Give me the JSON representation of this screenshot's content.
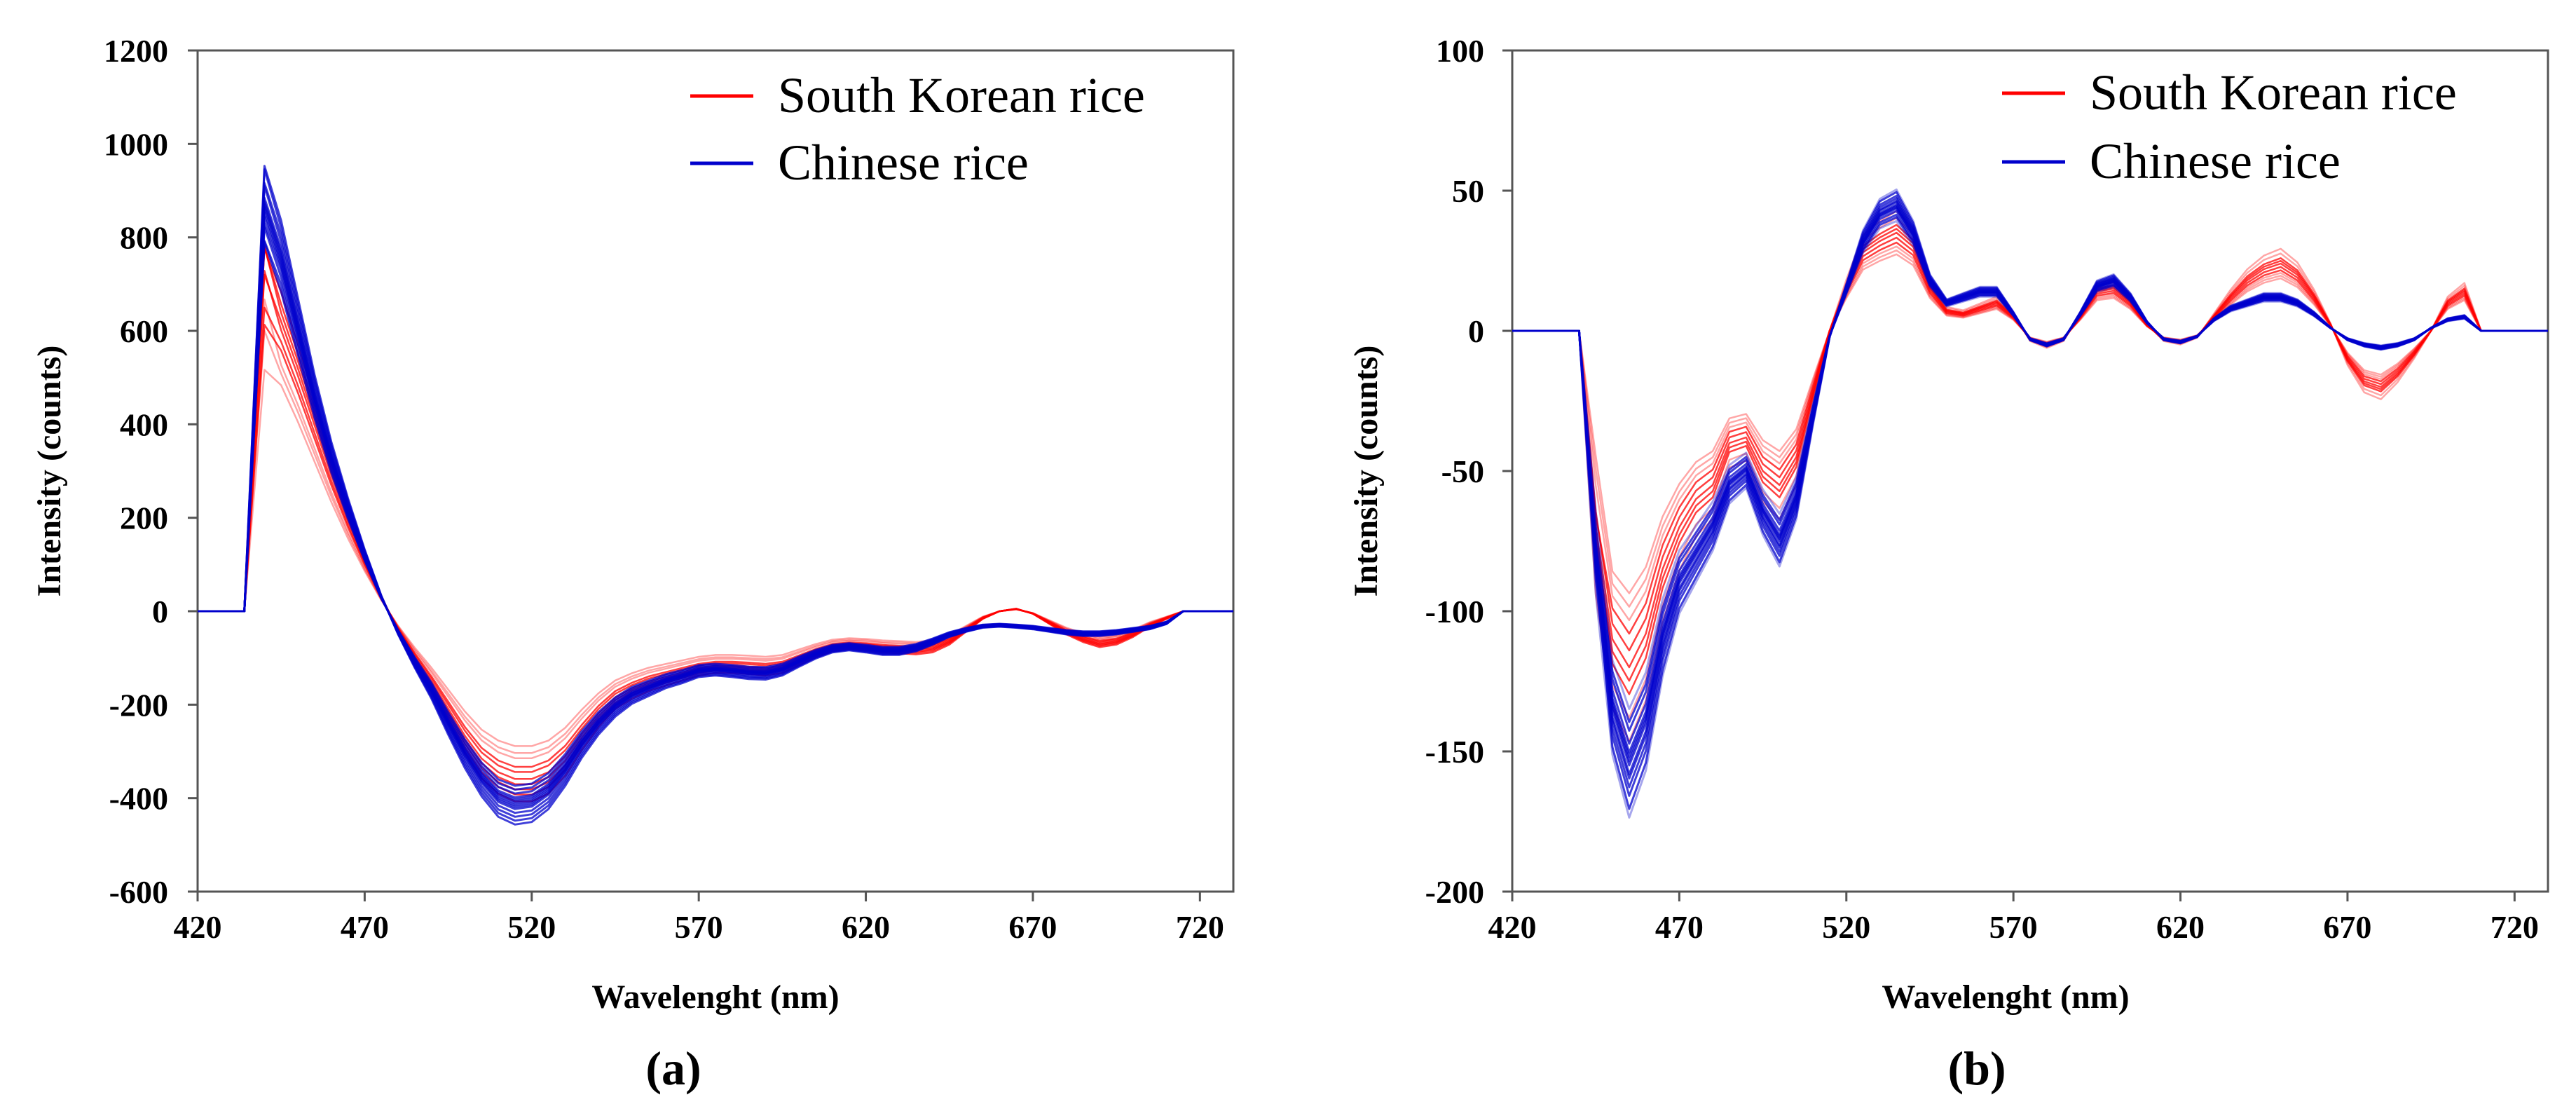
{
  "chart_data": [
    {
      "panel": "(a)",
      "type": "line",
      "title": "",
      "xlabel": "Wavelenght (nm)",
      "ylabel": "Intensity (counts)",
      "xlim": [
        420,
        730
      ],
      "ylim": [
        -600,
        1200
      ],
      "xticks": [
        420,
        470,
        520,
        570,
        620,
        670,
        720
      ],
      "yticks": [
        -600,
        -400,
        -200,
        0,
        200,
        400,
        600,
        800,
        1000,
        1200
      ],
      "grid": false,
      "legend": {
        "placement": "top-right",
        "entries": [
          {
            "label": "South Korean rice",
            "color": "#ff0000"
          },
          {
            "label": "Chinese rice",
            "color": "#0000cc"
          }
        ]
      },
      "x": [
        420,
        434,
        440,
        445,
        450,
        455,
        460,
        465,
        470,
        475,
        480,
        485,
        490,
        495,
        500,
        505,
        510,
        515,
        520,
        525,
        530,
        535,
        540,
        545,
        550,
        555,
        560,
        565,
        570,
        575,
        580,
        585,
        590,
        595,
        600,
        605,
        610,
        615,
        620,
        625,
        630,
        635,
        640,
        645,
        650,
        655,
        660,
        665,
        670,
        675,
        680,
        685,
        690,
        695,
        700,
        705,
        710,
        715,
        730
      ],
      "series": [
        {
          "name": "South Korean rice",
          "color": "#ff0000",
          "mean": [
            0,
            0,
            720,
            620,
            520,
            410,
            300,
            200,
            110,
            30,
            -40,
            -100,
            -155,
            -215,
            -275,
            -325,
            -355,
            -370,
            -370,
            -355,
            -320,
            -270,
            -225,
            -190,
            -170,
            -155,
            -145,
            -135,
            -125,
            -120,
            -120,
            -122,
            -125,
            -120,
            -105,
            -90,
            -78,
            -74,
            -76,
            -80,
            -82,
            -84,
            -80,
            -65,
            -40,
            -15,
            0,
            5,
            -5,
            -25,
            -45,
            -60,
            -70,
            -65,
            -50,
            -30,
            -15,
            0,
            0
          ],
          "curves": [
            {
              "scale": 1.0,
              "ridge": 0
            },
            {
              "scale": 0.93,
              "ridge": -20
            },
            {
              "scale": 1.06,
              "ridge": 15
            },
            {
              "scale": 0.85,
              "ridge": 55
            },
            {
              "scale": 0.78,
              "ridge": -45
            },
            {
              "scale": 1.1,
              "ridge": -15
            },
            {
              "scale": 0.97,
              "ridge": 30
            },
            {
              "scale": 0.9,
              "ridge": -35
            },
            {
              "scale": 1.03,
              "ridge": 40
            },
            {
              "scale": 0.82,
              "ridge": 10
            }
          ]
        },
        {
          "name": "Chinese rice",
          "color": "#0000cc",
          "mean": [
            0,
            0,
            870,
            760,
            610,
            460,
            330,
            220,
            120,
            30,
            -45,
            -110,
            -170,
            -240,
            -305,
            -360,
            -400,
            -415,
            -410,
            -385,
            -340,
            -285,
            -240,
            -205,
            -180,
            -165,
            -150,
            -140,
            -128,
            -125,
            -128,
            -132,
            -133,
            -125,
            -108,
            -92,
            -80,
            -76,
            -80,
            -85,
            -85,
            -78,
            -65,
            -50,
            -40,
            -32,
            -30,
            -32,
            -35,
            -40,
            -45,
            -48,
            -48,
            -45,
            -40,
            -35,
            -25,
            0,
            0
          ],
          "curves": [
            {
              "scale": 1.0,
              "ridge": 0
            },
            {
              "scale": 0.96,
              "ridge": -5
            },
            {
              "scale": 1.04,
              "ridge": 5
            },
            {
              "scale": 0.92,
              "ridge": -8
            },
            {
              "scale": 1.08,
              "ridge": 6
            },
            {
              "scale": 0.99,
              "ridge": 3
            },
            {
              "scale": 1.02,
              "ridge": -3
            },
            {
              "scale": 0.94,
              "ridge": 4
            },
            {
              "scale": 1.06,
              "ridge": -6
            },
            {
              "scale": 0.98,
              "ridge": 2
            },
            {
              "scale": 1.01,
              "ridge": -2
            },
            {
              "scale": 0.9,
              "ridge": 7
            },
            {
              "scale": 1.1,
              "ridge": -4
            },
            {
              "scale": 0.97,
              "ridge": 1
            }
          ]
        }
      ]
    },
    {
      "panel": "(b)",
      "type": "line",
      "title": "",
      "xlabel": "Wavelenght (nm)",
      "ylabel": "Intensity (counts)",
      "xlim": [
        420,
        730
      ],
      "ylim": [
        -200,
        100
      ],
      "xticks": [
        420,
        470,
        520,
        570,
        620,
        670,
        720
      ],
      "yticks": [
        -200,
        -150,
        -100,
        -50,
        0,
        50,
        100
      ],
      "grid": false,
      "legend": {
        "placement": "top-right",
        "entries": [
          {
            "label": "South Korean rice",
            "color": "#ff0000"
          },
          {
            "label": "Chinese rice",
            "color": "#0000cc"
          }
        ]
      },
      "x": [
        420,
        440,
        445,
        450,
        455,
        460,
        465,
        470,
        475,
        480,
        485,
        490,
        495,
        500,
        505,
        510,
        515,
        520,
        525,
        530,
        535,
        540,
        545,
        550,
        555,
        560,
        565,
        570,
        575,
        580,
        585,
        590,
        595,
        600,
        605,
        610,
        615,
        620,
        625,
        630,
        635,
        640,
        645,
        650,
        655,
        660,
        665,
        670,
        675,
        680,
        685,
        690,
        695,
        700,
        705,
        710,
        730
      ],
      "series": [
        {
          "name": "South Korean rice",
          "color": "#ff0000",
          "mean": [
            0,
            0,
            -70,
            -110,
            -120,
            -108,
            -85,
            -70,
            -60,
            -55,
            -40,
            -38,
            -50,
            -55,
            -45,
            -22,
            0,
            15,
            28,
            32,
            35,
            30,
            15,
            7,
            6,
            8,
            10,
            5,
            -3,
            -5,
            -3,
            5,
            14,
            15,
            10,
            2,
            -3,
            -4,
            -2,
            5,
            12,
            18,
            22,
            24,
            20,
            12,
            2,
            -10,
            -18,
            -20,
            -15,
            -8,
            0,
            10,
            14,
            0,
            0
          ],
          "curves": [
            {
              "scale": 1.0,
              "ridge": 0
            },
            {
              "scale": 0.9,
              "ridge": -3
            },
            {
              "scale": 1.08,
              "ridge": 4
            },
            {
              "scale": 0.82,
              "ridge": 8
            },
            {
              "scale": 1.15,
              "ridge": -6
            },
            {
              "scale": 0.95,
              "ridge": 2
            },
            {
              "scale": 1.22,
              "ridge": -9
            },
            {
              "scale": 0.86,
              "ridge": 5
            },
            {
              "scale": 1.04,
              "ridge": -2
            },
            {
              "scale": 0.78,
              "ridge": 10
            }
          ]
        },
        {
          "name": "Chinese rice",
          "color": "#0000cc",
          "mean": [
            0,
            0,
            -80,
            -135,
            -155,
            -140,
            -110,
            -90,
            -80,
            -70,
            -55,
            -50,
            -65,
            -75,
            -60,
            -30,
            -2,
            15,
            32,
            42,
            45,
            35,
            18,
            10,
            12,
            14,
            14,
            6,
            -3,
            -5,
            -3,
            6,
            16,
            18,
            12,
            3,
            -3,
            -4,
            -2,
            4,
            8,
            10,
            12,
            12,
            10,
            6,
            1,
            -3,
            -5,
            -6,
            -5,
            -3,
            1,
            4,
            5,
            0,
            0
          ],
          "curves": [
            {
              "scale": 1.0,
              "ridge": 0
            },
            {
              "scale": 0.95,
              "ridge": -2
            },
            {
              "scale": 1.05,
              "ridge": 2
            },
            {
              "scale": 0.9,
              "ridge": -4
            },
            {
              "scale": 1.1,
              "ridge": 3
            },
            {
              "scale": 0.98,
              "ridge": 1
            },
            {
              "scale": 1.02,
              "ridge": -1
            },
            {
              "scale": 0.92,
              "ridge": 4
            },
            {
              "scale": 1.07,
              "ridge": -3
            },
            {
              "scale": 0.97,
              "ridge": 2
            },
            {
              "scale": 1.03,
              "ridge": -2
            },
            {
              "scale": 0.87,
              "ridge": 5
            },
            {
              "scale": 1.12,
              "ridge": -4
            },
            {
              "scale": 0.99,
              "ridge": 1
            }
          ]
        }
      ]
    }
  ]
}
